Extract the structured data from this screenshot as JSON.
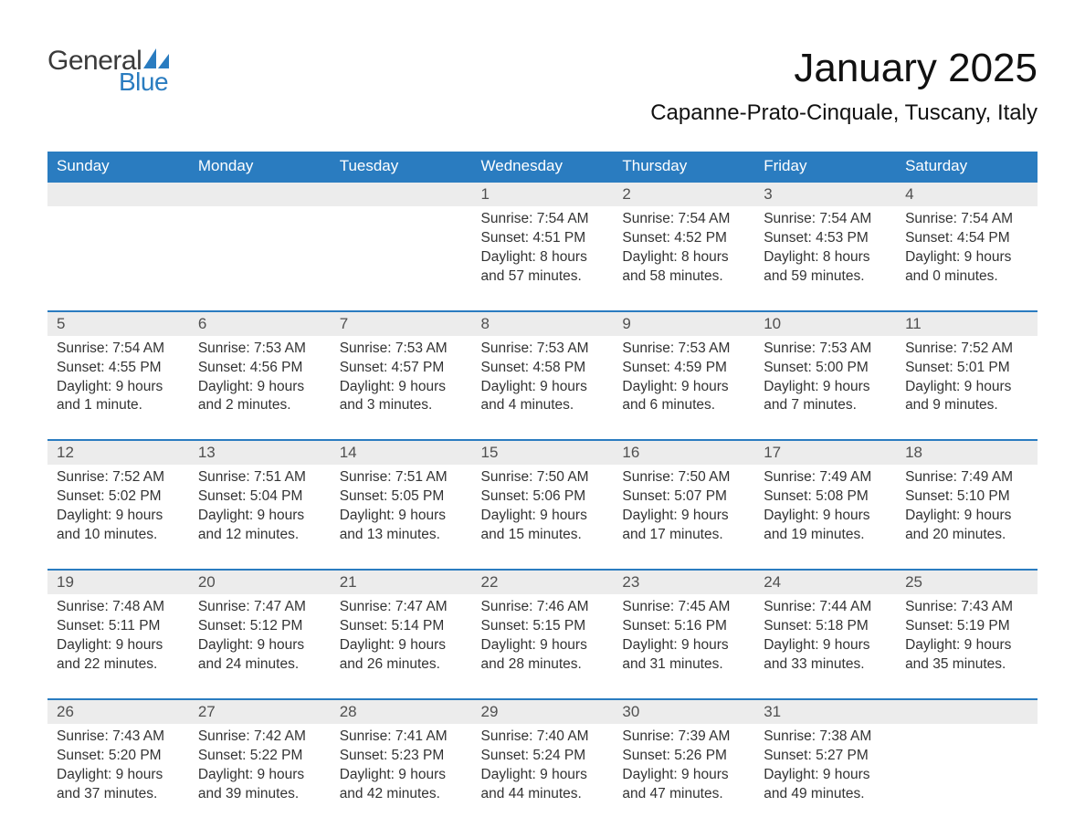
{
  "logo": {
    "general": "General",
    "blue": "Blue",
    "sail_color": "#2a7cc0"
  },
  "title": "January 2025",
  "location": "Capanne-Prato-Cinquale, Tuscany, Italy",
  "colors": {
    "header_bg": "#2a7cc0",
    "header_text": "#ffffff",
    "daynum_bg": "#ececec",
    "daynum_border": "#2a7cc0",
    "body_text": "#333333",
    "daynum_text": "#505050",
    "page_bg": "#ffffff"
  },
  "typography": {
    "month_title_size_pt": 33,
    "location_size_pt": 18,
    "weekday_size_pt": 13,
    "daynum_size_pt": 13,
    "detail_size_pt": 12
  },
  "weekdays": [
    "Sunday",
    "Monday",
    "Tuesday",
    "Wednesday",
    "Thursday",
    "Friday",
    "Saturday"
  ],
  "weeks": [
    [
      null,
      null,
      null,
      {
        "day": "1",
        "sunrise": "Sunrise: 7:54 AM",
        "sunset": "Sunset: 4:51 PM",
        "daylight1": "Daylight: 8 hours",
        "daylight2": "and 57 minutes."
      },
      {
        "day": "2",
        "sunrise": "Sunrise: 7:54 AM",
        "sunset": "Sunset: 4:52 PM",
        "daylight1": "Daylight: 8 hours",
        "daylight2": "and 58 minutes."
      },
      {
        "day": "3",
        "sunrise": "Sunrise: 7:54 AM",
        "sunset": "Sunset: 4:53 PM",
        "daylight1": "Daylight: 8 hours",
        "daylight2": "and 59 minutes."
      },
      {
        "day": "4",
        "sunrise": "Sunrise: 7:54 AM",
        "sunset": "Sunset: 4:54 PM",
        "daylight1": "Daylight: 9 hours",
        "daylight2": "and 0 minutes."
      }
    ],
    [
      {
        "day": "5",
        "sunrise": "Sunrise: 7:54 AM",
        "sunset": "Sunset: 4:55 PM",
        "daylight1": "Daylight: 9 hours",
        "daylight2": "and 1 minute."
      },
      {
        "day": "6",
        "sunrise": "Sunrise: 7:53 AM",
        "sunset": "Sunset: 4:56 PM",
        "daylight1": "Daylight: 9 hours",
        "daylight2": "and 2 minutes."
      },
      {
        "day": "7",
        "sunrise": "Sunrise: 7:53 AM",
        "sunset": "Sunset: 4:57 PM",
        "daylight1": "Daylight: 9 hours",
        "daylight2": "and 3 minutes."
      },
      {
        "day": "8",
        "sunrise": "Sunrise: 7:53 AM",
        "sunset": "Sunset: 4:58 PM",
        "daylight1": "Daylight: 9 hours",
        "daylight2": "and 4 minutes."
      },
      {
        "day": "9",
        "sunrise": "Sunrise: 7:53 AM",
        "sunset": "Sunset: 4:59 PM",
        "daylight1": "Daylight: 9 hours",
        "daylight2": "and 6 minutes."
      },
      {
        "day": "10",
        "sunrise": "Sunrise: 7:53 AM",
        "sunset": "Sunset: 5:00 PM",
        "daylight1": "Daylight: 9 hours",
        "daylight2": "and 7 minutes."
      },
      {
        "day": "11",
        "sunrise": "Sunrise: 7:52 AM",
        "sunset": "Sunset: 5:01 PM",
        "daylight1": "Daylight: 9 hours",
        "daylight2": "and 9 minutes."
      }
    ],
    [
      {
        "day": "12",
        "sunrise": "Sunrise: 7:52 AM",
        "sunset": "Sunset: 5:02 PM",
        "daylight1": "Daylight: 9 hours",
        "daylight2": "and 10 minutes."
      },
      {
        "day": "13",
        "sunrise": "Sunrise: 7:51 AM",
        "sunset": "Sunset: 5:04 PM",
        "daylight1": "Daylight: 9 hours",
        "daylight2": "and 12 minutes."
      },
      {
        "day": "14",
        "sunrise": "Sunrise: 7:51 AM",
        "sunset": "Sunset: 5:05 PM",
        "daylight1": "Daylight: 9 hours",
        "daylight2": "and 13 minutes."
      },
      {
        "day": "15",
        "sunrise": "Sunrise: 7:50 AM",
        "sunset": "Sunset: 5:06 PM",
        "daylight1": "Daylight: 9 hours",
        "daylight2": "and 15 minutes."
      },
      {
        "day": "16",
        "sunrise": "Sunrise: 7:50 AM",
        "sunset": "Sunset: 5:07 PM",
        "daylight1": "Daylight: 9 hours",
        "daylight2": "and 17 minutes."
      },
      {
        "day": "17",
        "sunrise": "Sunrise: 7:49 AM",
        "sunset": "Sunset: 5:08 PM",
        "daylight1": "Daylight: 9 hours",
        "daylight2": "and 19 minutes."
      },
      {
        "day": "18",
        "sunrise": "Sunrise: 7:49 AM",
        "sunset": "Sunset: 5:10 PM",
        "daylight1": "Daylight: 9 hours",
        "daylight2": "and 20 minutes."
      }
    ],
    [
      {
        "day": "19",
        "sunrise": "Sunrise: 7:48 AM",
        "sunset": "Sunset: 5:11 PM",
        "daylight1": "Daylight: 9 hours",
        "daylight2": "and 22 minutes."
      },
      {
        "day": "20",
        "sunrise": "Sunrise: 7:47 AM",
        "sunset": "Sunset: 5:12 PM",
        "daylight1": "Daylight: 9 hours",
        "daylight2": "and 24 minutes."
      },
      {
        "day": "21",
        "sunrise": "Sunrise: 7:47 AM",
        "sunset": "Sunset: 5:14 PM",
        "daylight1": "Daylight: 9 hours",
        "daylight2": "and 26 minutes."
      },
      {
        "day": "22",
        "sunrise": "Sunrise: 7:46 AM",
        "sunset": "Sunset: 5:15 PM",
        "daylight1": "Daylight: 9 hours",
        "daylight2": "and 28 minutes."
      },
      {
        "day": "23",
        "sunrise": "Sunrise: 7:45 AM",
        "sunset": "Sunset: 5:16 PM",
        "daylight1": "Daylight: 9 hours",
        "daylight2": "and 31 minutes."
      },
      {
        "day": "24",
        "sunrise": "Sunrise: 7:44 AM",
        "sunset": "Sunset: 5:18 PM",
        "daylight1": "Daylight: 9 hours",
        "daylight2": "and 33 minutes."
      },
      {
        "day": "25",
        "sunrise": "Sunrise: 7:43 AM",
        "sunset": "Sunset: 5:19 PM",
        "daylight1": "Daylight: 9 hours",
        "daylight2": "and 35 minutes."
      }
    ],
    [
      {
        "day": "26",
        "sunrise": "Sunrise: 7:43 AM",
        "sunset": "Sunset: 5:20 PM",
        "daylight1": "Daylight: 9 hours",
        "daylight2": "and 37 minutes."
      },
      {
        "day": "27",
        "sunrise": "Sunrise: 7:42 AM",
        "sunset": "Sunset: 5:22 PM",
        "daylight1": "Daylight: 9 hours",
        "daylight2": "and 39 minutes."
      },
      {
        "day": "28",
        "sunrise": "Sunrise: 7:41 AM",
        "sunset": "Sunset: 5:23 PM",
        "daylight1": "Daylight: 9 hours",
        "daylight2": "and 42 minutes."
      },
      {
        "day": "29",
        "sunrise": "Sunrise: 7:40 AM",
        "sunset": "Sunset: 5:24 PM",
        "daylight1": "Daylight: 9 hours",
        "daylight2": "and 44 minutes."
      },
      {
        "day": "30",
        "sunrise": "Sunrise: 7:39 AM",
        "sunset": "Sunset: 5:26 PM",
        "daylight1": "Daylight: 9 hours",
        "daylight2": "and 47 minutes."
      },
      {
        "day": "31",
        "sunrise": "Sunrise: 7:38 AM",
        "sunset": "Sunset: 5:27 PM",
        "daylight1": "Daylight: 9 hours",
        "daylight2": "and 49 minutes."
      },
      null
    ]
  ]
}
